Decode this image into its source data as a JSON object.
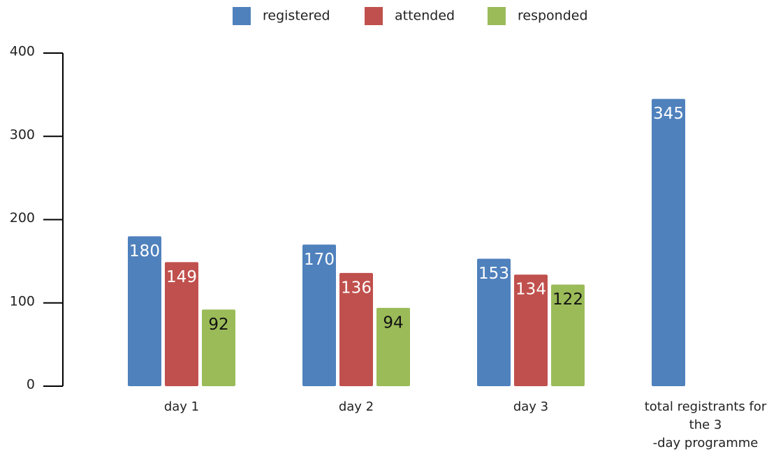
{
  "chart_data": {
    "type": "bar",
    "categories": [
      "day 1",
      "day 2",
      "day 3",
      "total registrants for the 3 -day programme"
    ],
    "series": [
      {
        "name": "registered",
        "color": "#4f81bd",
        "values": [
          180,
          170,
          153,
          345
        ]
      },
      {
        "name": "attended",
        "color": "#c0504d",
        "values": [
          149,
          136,
          134,
          null
        ]
      },
      {
        "name": "responded",
        "color": "#9bbb59",
        "values": [
          92,
          94,
          122,
          null
        ]
      }
    ],
    "ylim": [
      0,
      400
    ],
    "yticks": [
      0,
      100,
      200,
      300,
      400
    ],
    "legend": "top"
  }
}
